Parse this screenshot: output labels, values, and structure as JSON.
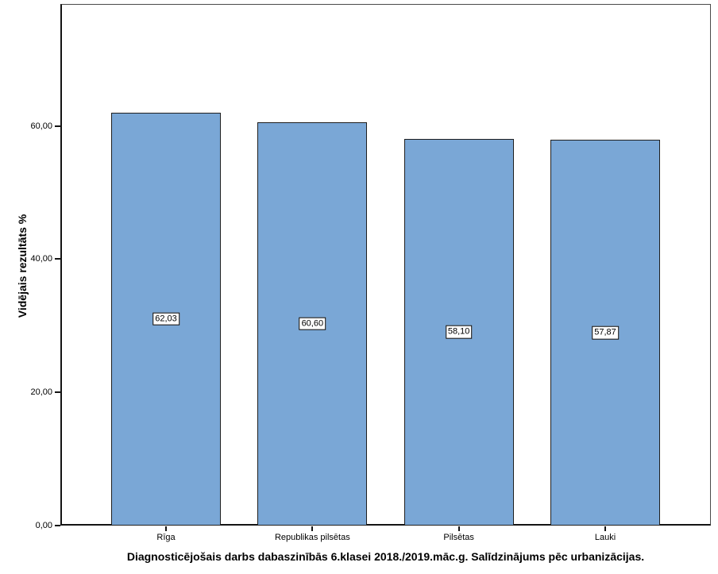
{
  "chart_data": {
    "type": "bar",
    "title": "Diagnosticējošais darbs dabaszinībās 6.klasei 2018./2019.māc.g. Salīdzinājums pēc urbanizācijas.",
    "ylabel": "Vidējais rezultāts %",
    "xlabel": "",
    "categories": [
      "Rīga",
      "Republikas pilsētas",
      "Pilsētas",
      "Lauki"
    ],
    "values": [
      62.03,
      60.6,
      58.1,
      57.87
    ],
    "value_labels": [
      "62,03",
      "60,60",
      "58,10",
      "57,87"
    ],
    "yticks": {
      "values": [
        0,
        20,
        40,
        60
      ],
      "labels": [
        "0,00",
        "20,00",
        "40,00",
        "60,00"
      ]
    },
    "ylim": [
      0,
      78
    ],
    "grid": false,
    "legend": "none",
    "colors": {
      "bar_fill": "#7AA7D6",
      "bar_border": "#1f1f1f",
      "frame_border": "#4a4a4a",
      "axis_line": "#141414",
      "label_box_bg": "#ffffff",
      "label_box_border": "#000000",
      "text": "#000000",
      "background": "#ffffff"
    }
  }
}
